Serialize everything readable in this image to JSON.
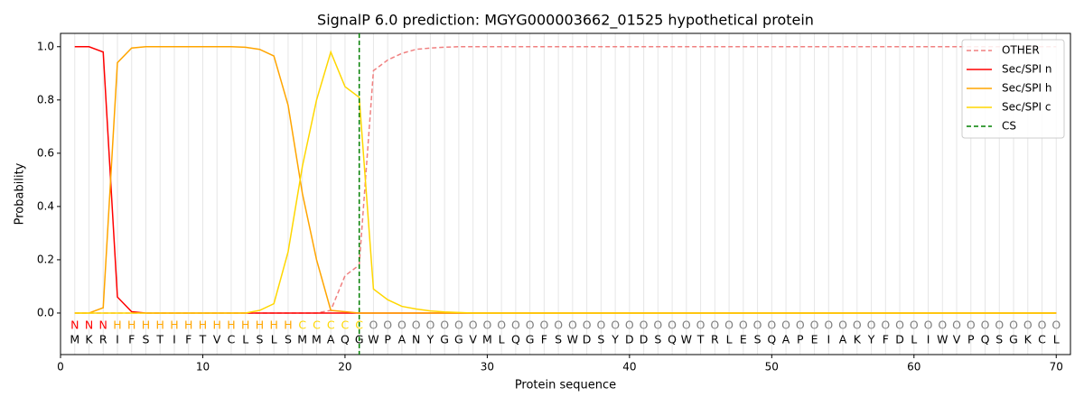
{
  "chart_data": {
    "type": "line",
    "title": "SignalP 6.0 prediction: MGYG000003662_01525 hypothetical protein",
    "x_label": "Protein sequence",
    "y_label": "Probability",
    "x": [
      1,
      2,
      3,
      4,
      5,
      6,
      7,
      8,
      9,
      10,
      11,
      12,
      13,
      14,
      15,
      16,
      17,
      18,
      19,
      20,
      21,
      22,
      23,
      24,
      25,
      26,
      27,
      28,
      29,
      30,
      31,
      32,
      33,
      34,
      35,
      36,
      37,
      38,
      39,
      40,
      41,
      42,
      43,
      44,
      45,
      46,
      47,
      48,
      49,
      50,
      51,
      52,
      53,
      54,
      55,
      56,
      57,
      58,
      59,
      60,
      61,
      62,
      63,
      64,
      65,
      66,
      67,
      68,
      69,
      70
    ],
    "residues": [
      "M",
      "K",
      "R",
      "I",
      "F",
      "S",
      "T",
      "I",
      "F",
      "T",
      "V",
      "C",
      "L",
      "S",
      "L",
      "S",
      "M",
      "M",
      "A",
      "Q",
      "G",
      "W",
      "P",
      "A",
      "N",
      "Y",
      "G",
      "G",
      "V",
      "M",
      "L",
      "Q",
      "G",
      "F",
      "S",
      "W",
      "D",
      "S",
      "Y",
      "D",
      "D",
      "S",
      "Q",
      "W",
      "T",
      "R",
      "L",
      "E",
      "S",
      "Q",
      "A",
      "P",
      "E",
      "I",
      "A",
      "K",
      "Y",
      "F",
      "D",
      "L",
      "I",
      "W",
      "V",
      "P",
      "Q",
      "S",
      "G",
      "K",
      "C",
      "L"
    ],
    "region_labels": [
      "N",
      "N",
      "N",
      "H",
      "H",
      "H",
      "H",
      "H",
      "H",
      "H",
      "H",
      "H",
      "H",
      "H",
      "H",
      "H",
      "C",
      "C",
      "C",
      "C",
      "C",
      "O",
      "O",
      "O",
      "O",
      "O",
      "O",
      "O",
      "O",
      "O",
      "O",
      "O",
      "O",
      "O",
      "O",
      "O",
      "O",
      "O",
      "O",
      "O",
      "O",
      "O",
      "O",
      "O",
      "O",
      "O",
      "O",
      "O",
      "O",
      "O",
      "O",
      "O",
      "O",
      "O",
      "O",
      "O",
      "O",
      "O",
      "O",
      "O",
      "O",
      "O",
      "O",
      "O",
      "O",
      "O",
      "O",
      "O",
      "O",
      "O"
    ],
    "region_colors": {
      "N": "#ff0000",
      "H": "#ffa500",
      "C": "#ffd700",
      "O": "#808080"
    },
    "series": [
      {
        "name": "OTHER",
        "color": "#f08080",
        "dashed": true,
        "values": [
          0,
          0,
          0,
          0,
          0,
          0,
          0,
          0,
          0,
          0,
          0,
          0,
          0,
          0,
          0,
          0,
          0,
          0,
          0.01,
          0.14,
          0.18,
          0.91,
          0.95,
          0.975,
          0.99,
          0.995,
          0.998,
          1,
          1,
          1,
          1,
          1,
          1,
          1,
          1,
          1,
          1,
          1,
          1,
          1,
          1,
          1,
          1,
          1,
          1,
          1,
          1,
          1,
          1,
          1,
          1,
          1,
          1,
          1,
          1,
          1,
          1,
          1,
          1,
          1,
          1,
          1,
          1,
          1,
          1,
          1,
          1,
          1,
          1,
          1
        ]
      },
      {
        "name": "Sec/SPI n",
        "color": "#ff0000",
        "dashed": false,
        "values": [
          1,
          1,
          0.98,
          0.06,
          0.005,
          0,
          0,
          0,
          0,
          0,
          0,
          0,
          0,
          0,
          0,
          0,
          0,
          0,
          0,
          0,
          0,
          0,
          0,
          0,
          0,
          0,
          0,
          0,
          0,
          0,
          0,
          0,
          0,
          0,
          0,
          0,
          0,
          0,
          0,
          0,
          0,
          0,
          0,
          0,
          0,
          0,
          0,
          0,
          0,
          0,
          0,
          0,
          0,
          0,
          0,
          0,
          0,
          0,
          0,
          0,
          0,
          0,
          0,
          0,
          0,
          0,
          0,
          0,
          0,
          0
        ]
      },
      {
        "name": "Sec/SPI h",
        "color": "#ffa500",
        "dashed": false,
        "values": [
          0,
          0,
          0.02,
          0.94,
          0.995,
          1,
          1,
          1,
          1,
          1,
          1,
          1,
          0.998,
          0.99,
          0.965,
          0.78,
          0.45,
          0.2,
          0.01,
          0.005,
          0,
          0,
          0,
          0,
          0,
          0,
          0,
          0,
          0,
          0,
          0,
          0,
          0,
          0,
          0,
          0,
          0,
          0,
          0,
          0,
          0,
          0,
          0,
          0,
          0,
          0,
          0,
          0,
          0,
          0,
          0,
          0,
          0,
          0,
          0,
          0,
          0,
          0,
          0,
          0,
          0,
          0,
          0,
          0,
          0,
          0,
          0,
          0,
          0,
          0
        ]
      },
      {
        "name": "Sec/SPI c",
        "color": "#ffd700",
        "dashed": false,
        "values": [
          0,
          0,
          0,
          0,
          0,
          0,
          0,
          0,
          0,
          0,
          0,
          0,
          0,
          0.01,
          0.035,
          0.23,
          0.55,
          0.8,
          0.98,
          0.85,
          0.81,
          0.09,
          0.05,
          0.025,
          0.015,
          0.008,
          0.004,
          0.002,
          0,
          0,
          0,
          0,
          0,
          0,
          0,
          0,
          0,
          0,
          0,
          0,
          0,
          0,
          0,
          0,
          0,
          0,
          0,
          0,
          0,
          0,
          0,
          0,
          0,
          0,
          0,
          0,
          0,
          0,
          0,
          0,
          0,
          0,
          0,
          0,
          0,
          0,
          0,
          0,
          0,
          0
        ]
      }
    ],
    "cs": {
      "name": "CS",
      "x": 21,
      "color": "#008000"
    },
    "xlim": [
      0,
      71
    ],
    "ylim": [
      -0.156,
      1.05
    ],
    "xticks": [
      0,
      10,
      20,
      30,
      40,
      50,
      60,
      70
    ],
    "yticks": [
      {
        "value": 0,
        "label": "0.0"
      },
      0.2,
      0.4,
      0.6,
      0.8,
      {
        "value": 1,
        "label": "1.0"
      }
    ],
    "xgrid": true,
    "legend": "upper right"
  }
}
